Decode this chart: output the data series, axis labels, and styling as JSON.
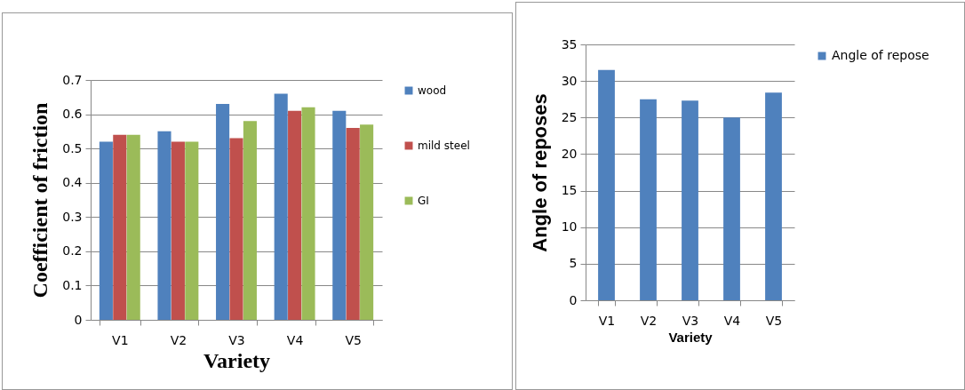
{
  "chart_data": [
    {
      "type": "bar",
      "xlabel": "Variety",
      "ylabel": "Coefficient of friction",
      "categories": [
        "V1",
        "V2",
        "V3",
        "V4",
        "V5"
      ],
      "series": [
        {
          "name": "wood",
          "color": "#4f81bd",
          "values": [
            0.52,
            0.55,
            0.63,
            0.66,
            0.61
          ]
        },
        {
          "name": "mild steel",
          "color": "#c0504d",
          "values": [
            0.54,
            0.52,
            0.53,
            0.61,
            0.56
          ]
        },
        {
          "name": "GI",
          "color": "#9bbb59",
          "values": [
            0.54,
            0.52,
            0.58,
            0.62,
            0.57
          ]
        }
      ],
      "ylim": [
        0,
        0.7
      ],
      "yticks": [
        0,
        0.1,
        0.2,
        0.3,
        0.4,
        0.5,
        0.6,
        0.7
      ],
      "grid": "y",
      "legend": "right"
    },
    {
      "type": "bar",
      "xlabel": "Variety",
      "ylabel": "Angle of reposes",
      "categories": [
        "V1",
        "V2",
        "V3",
        "V4",
        "V5"
      ],
      "series": [
        {
          "name": "Angle of repose",
          "color": "#4f81bd",
          "values": [
            31.5,
            27.5,
            27.3,
            25.0,
            28.4
          ]
        }
      ],
      "ylim": [
        0,
        35
      ],
      "yticks": [
        0,
        5,
        10,
        15,
        20,
        25,
        30,
        35
      ],
      "grid": "y",
      "legend": "right"
    }
  ]
}
